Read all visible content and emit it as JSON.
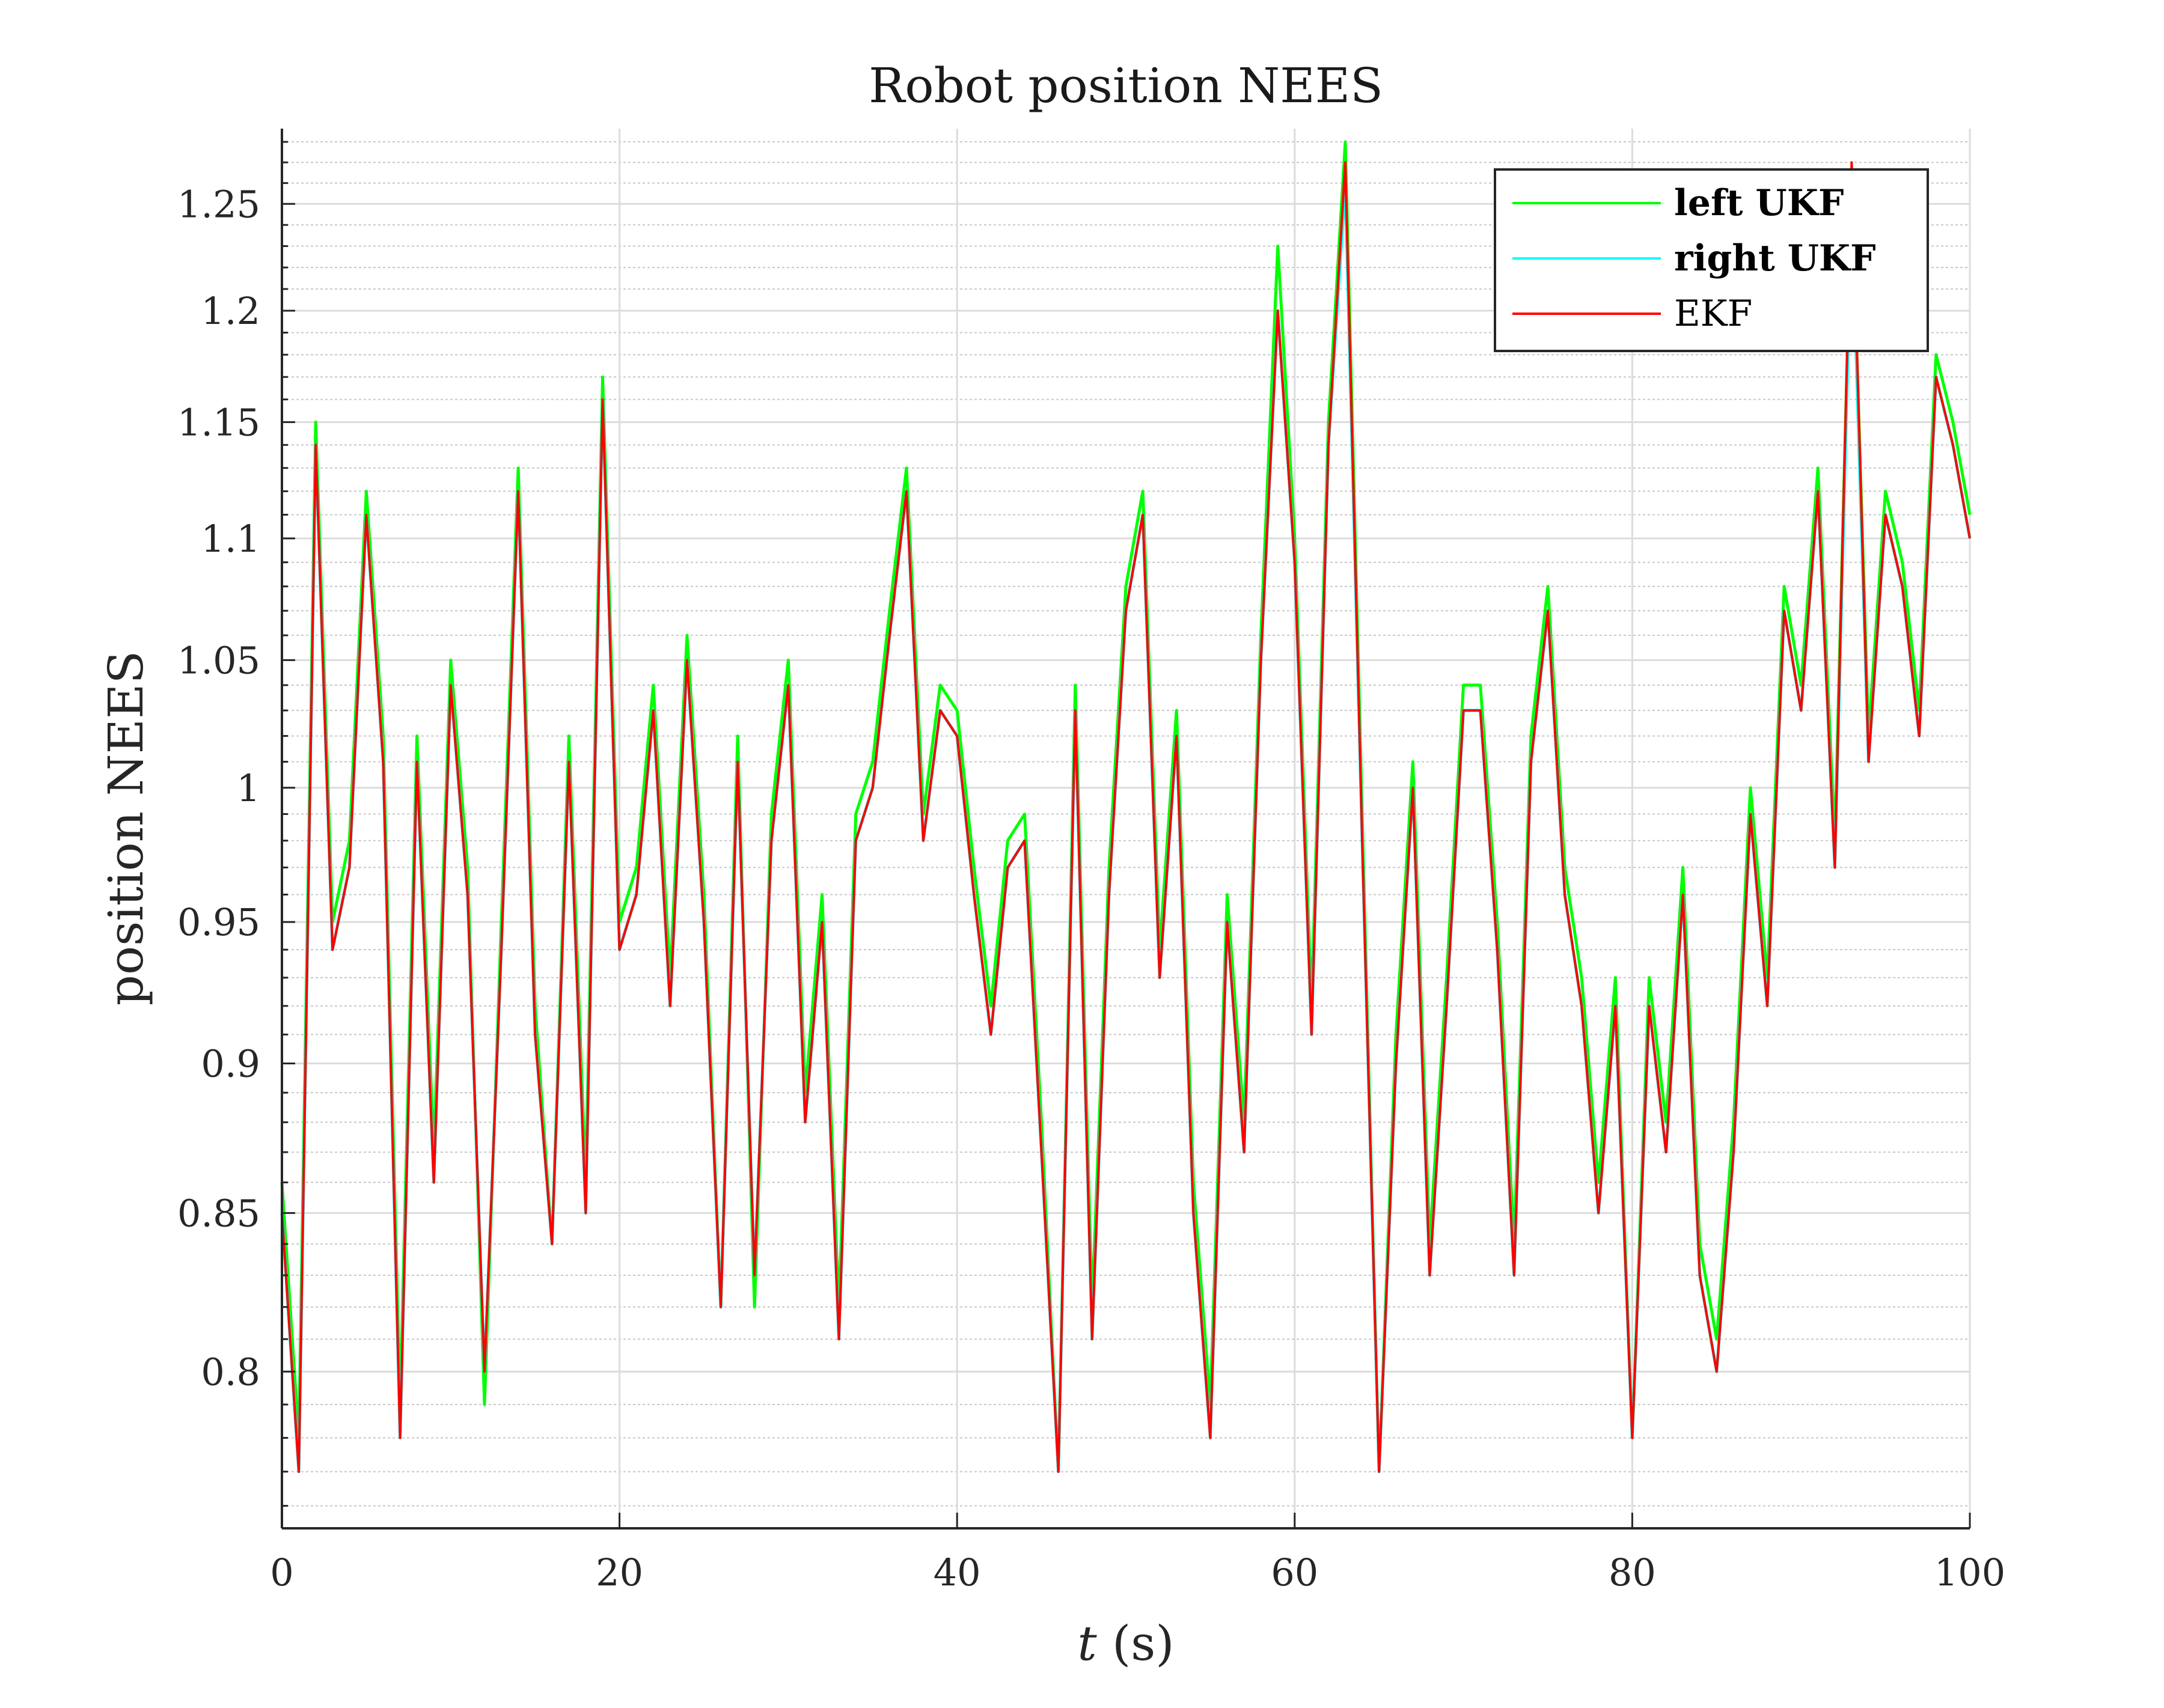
{
  "chart_data": {
    "type": "line",
    "title": "Robot position NEES",
    "xlabel_var": "t",
    "xlabel_unit": "(s)",
    "ylabel": "position NEES",
    "xlim": [
      0,
      100
    ],
    "ylim": [
      0.7535,
      1.2865
    ],
    "log_scale_y": true,
    "xticks": [
      0,
      20,
      40,
      60,
      80,
      100
    ],
    "xtick_labels": [
      "0",
      "20",
      "40",
      "60",
      "80",
      "100"
    ],
    "yticks": [
      0.8,
      0.85,
      0.9,
      0.95,
      1,
      1.05,
      1.1,
      1.15,
      1.2,
      1.25
    ],
    "ytick_labels": [
      "0.8",
      "0.85",
      "0.9",
      "0.95",
      "1",
      "1.05",
      "1.1",
      "1.15",
      "1.2",
      "1.25"
    ],
    "grid": true,
    "minor_grid": true,
    "legend_position": "top-right",
    "legend": [
      {
        "label": "left UKF",
        "color": "#00ff00",
        "bold": true
      },
      {
        "label": "right UKF",
        "color": "#00ffff",
        "bold": true
      },
      {
        "label": "EKF",
        "color": "#ff0000",
        "bold": false
      }
    ],
    "series": [
      {
        "name": "left UKF",
        "color": "#00ff00",
        "x": [
          0,
          1,
          2,
          3,
          4,
          5,
          6,
          7,
          8,
          9,
          10,
          11,
          12,
          13,
          14,
          15,
          16,
          17,
          18,
          19,
          20,
          21,
          22,
          23,
          24,
          25,
          26,
          27,
          28,
          29,
          30,
          31,
          32,
          33,
          34,
          35,
          36,
          37,
          38,
          39,
          40,
          41,
          42,
          43,
          44,
          45,
          46,
          47,
          48,
          49,
          50,
          51,
          52,
          53,
          54,
          55,
          56,
          57,
          58,
          59,
          60,
          61,
          62,
          63,
          64,
          65,
          66,
          67,
          68,
          69,
          70,
          71,
          72,
          73,
          74,
          75,
          76,
          77,
          78,
          79,
          80,
          81,
          82,
          83,
          84,
          85,
          86,
          87,
          88,
          89,
          90,
          91,
          92,
          93,
          94,
          95,
          96,
          97,
          98,
          99,
          100
        ],
        "y": [
          0.86,
          0.78,
          1.15,
          0.95,
          0.98,
          1.12,
          1.02,
          0.79,
          1.02,
          0.87,
          1.05,
          0.97,
          0.79,
          0.95,
          1.13,
          0.92,
          0.84,
          1.02,
          0.86,
          1.17,
          0.95,
          0.97,
          1.04,
          0.93,
          1.06,
          0.96,
          0.82,
          1.02,
          0.82,
          0.99,
          1.05,
          0.89,
          0.96,
          0.82,
          0.99,
          1.01,
          1.07,
          1.13,
          0.99,
          1.04,
          1.03,
          0.97,
          0.92,
          0.98,
          0.99,
          0.88,
          0.77,
          1.04,
          0.82,
          0.97,
          1.08,
          1.12,
          0.94,
          1.03,
          0.86,
          0.79,
          0.96,
          0.88,
          1.06,
          1.23,
          1.1,
          0.92,
          1.15,
          1.28,
          0.99,
          0.77,
          0.91,
          1.01,
          0.84,
          0.93,
          1.04,
          1.04,
          0.95,
          0.84,
          1.02,
          1.08,
          0.97,
          0.93,
          0.86,
          0.93,
          0.78,
          0.93,
          0.88,
          0.97,
          0.84,
          0.81,
          0.88,
          1.0,
          0.93,
          1.08,
          1.04,
          1.13,
          0.98,
          1.26,
          1.02,
          1.12,
          1.09,
          1.03,
          1.18,
          1.15,
          1.11
        ]
      },
      {
        "name": "right UKF",
        "color": "#00ffff",
        "x": [
          0,
          1,
          2,
          3,
          4,
          5,
          6,
          7,
          8,
          9,
          10,
          11,
          12,
          13,
          14,
          15,
          16,
          17,
          18,
          19,
          20,
          21,
          22,
          23,
          24,
          25,
          26,
          27,
          28,
          29,
          30,
          31,
          32,
          33,
          34,
          35,
          36,
          37,
          38,
          39,
          40,
          41,
          42,
          43,
          44,
          45,
          46,
          47,
          48,
          49,
          50,
          51,
          52,
          53,
          54,
          55,
          56,
          57,
          58,
          59,
          60,
          61,
          62,
          63,
          64,
          65,
          66,
          67,
          68,
          69,
          70,
          71,
          72,
          73,
          74,
          75,
          76,
          77,
          78,
          79,
          80,
          81,
          82,
          83,
          84,
          85,
          86,
          87,
          88,
          89,
          90,
          91,
          92,
          93,
          94,
          95,
          96,
          97,
          98,
          99,
          100
        ],
        "y": [
          0.85,
          0.77,
          1.14,
          0.94,
          0.97,
          1.11,
          1.01,
          0.78,
          1.01,
          0.86,
          1.04,
          0.96,
          0.8,
          0.94,
          1.12,
          0.91,
          0.84,
          1.01,
          0.85,
          1.16,
          0.94,
          0.96,
          1.03,
          0.92,
          1.05,
          0.95,
          0.82,
          1.01,
          0.83,
          0.98,
          1.04,
          0.88,
          0.95,
          0.81,
          0.98,
          1.0,
          1.06,
          1.12,
          0.98,
          1.03,
          1.02,
          0.96,
          0.91,
          0.97,
          0.98,
          0.87,
          0.77,
          1.03,
          0.81,
          0.96,
          1.07,
          1.11,
          0.93,
          1.02,
          0.85,
          0.78,
          0.95,
          0.87,
          1.05,
          1.2,
          1.09,
          0.91,
          1.14,
          1.26,
          0.98,
          0.77,
          0.9,
          1.0,
          0.83,
          0.92,
          1.03,
          1.03,
          0.94,
          0.83,
          1.01,
          1.07,
          0.96,
          0.92,
          0.85,
          0.92,
          0.78,
          0.92,
          0.87,
          0.96,
          0.83,
          0.8,
          0.87,
          0.99,
          0.92,
          1.07,
          1.03,
          1.12,
          0.97,
          1.25,
          1.01,
          1.11,
          1.08,
          1.02,
          1.17,
          1.14,
          1.1
        ]
      },
      {
        "name": "EKF",
        "color": "#ff0000",
        "x": [
          0,
          1,
          2,
          3,
          4,
          5,
          6,
          7,
          8,
          9,
          10,
          11,
          12,
          13,
          14,
          15,
          16,
          17,
          18,
          19,
          20,
          21,
          22,
          23,
          24,
          25,
          26,
          27,
          28,
          29,
          30,
          31,
          32,
          33,
          34,
          35,
          36,
          37,
          38,
          39,
          40,
          41,
          42,
          43,
          44,
          45,
          46,
          47,
          48,
          49,
          50,
          51,
          52,
          53,
          54,
          55,
          56,
          57,
          58,
          59,
          60,
          61,
          62,
          63,
          64,
          65,
          66,
          67,
          68,
          69,
          70,
          71,
          72,
          73,
          74,
          75,
          76,
          77,
          78,
          79,
          80,
          81,
          82,
          83,
          84,
          85,
          86,
          87,
          88,
          89,
          90,
          91,
          92,
          93,
          94,
          95,
          96,
          97,
          98,
          99,
          100
        ],
        "y": [
          0.85,
          0.77,
          1.14,
          0.94,
          0.97,
          1.11,
          1.01,
          0.78,
          1.01,
          0.86,
          1.04,
          0.96,
          0.8,
          0.94,
          1.12,
          0.91,
          0.84,
          1.01,
          0.85,
          1.16,
          0.94,
          0.96,
          1.03,
          0.92,
          1.05,
          0.95,
          0.82,
          1.01,
          0.83,
          0.98,
          1.04,
          0.88,
          0.95,
          0.81,
          0.98,
          1.0,
          1.06,
          1.12,
          0.98,
          1.03,
          1.02,
          0.96,
          0.91,
          0.97,
          0.98,
          0.87,
          0.77,
          1.03,
          0.81,
          0.96,
          1.07,
          1.11,
          0.93,
          1.02,
          0.85,
          0.78,
          0.95,
          0.87,
          1.05,
          1.2,
          1.09,
          0.91,
          1.14,
          1.27,
          0.98,
          0.77,
          0.9,
          1.0,
          0.83,
          0.92,
          1.03,
          1.03,
          0.94,
          0.83,
          1.01,
          1.07,
          0.96,
          0.92,
          0.85,
          0.92,
          0.78,
          0.92,
          0.87,
          0.96,
          0.83,
          0.8,
          0.87,
          0.99,
          0.92,
          1.07,
          1.03,
          1.12,
          0.97,
          1.27,
          1.01,
          1.11,
          1.08,
          1.02,
          1.17,
          1.14,
          1.1
        ]
      }
    ]
  }
}
